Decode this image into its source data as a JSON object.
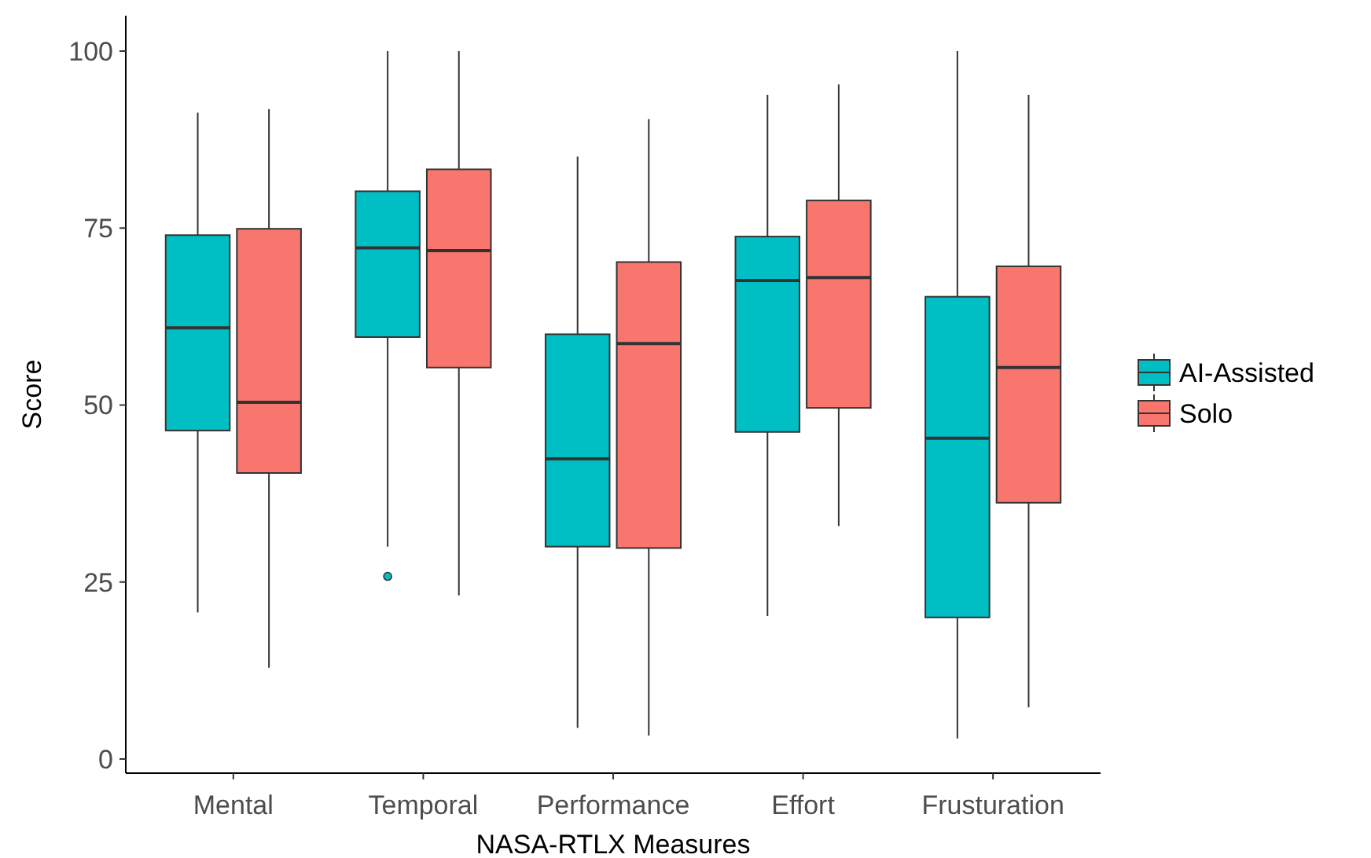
{
  "chart_data": {
    "type": "box",
    "xlabel": "NASA-RTLX Measures",
    "ylabel": "Score",
    "categories": [
      "Mental",
      "Temporal",
      "Performance",
      "Effort",
      "Frusturation"
    ],
    "ylim": [
      -2,
      105
    ],
    "yticks": [
      0,
      25,
      50,
      75,
      100
    ],
    "grid": false,
    "legend": "right",
    "series": [
      {
        "name": "AI-Assisted",
        "color": "#00bfc4",
        "boxes": [
          {
            "low": 20.7,
            "q1": 46.4,
            "median": 60.9,
            "q3": 74,
            "high": 91.3
          },
          {
            "low": 30,
            "q1": 59.6,
            "median": 72.2,
            "q3": 80.2,
            "high": 100,
            "outliers": [
              25.8
            ]
          },
          {
            "low": 4.4,
            "q1": 30,
            "median": 42.4,
            "q3": 60,
            "high": 85.1
          },
          {
            "low": 20.2,
            "q1": 46.2,
            "median": 67.6,
            "q3": 73.8,
            "high": 93.8
          },
          {
            "low": 2.9,
            "q1": 20,
            "median": 45.3,
            "q3": 65.3,
            "high": 100
          }
        ]
      },
      {
        "name": "Solo",
        "color": "#f8766d",
        "boxes": [
          {
            "low": 12.9,
            "q1": 40.4,
            "median": 50.4,
            "q3": 74.9,
            "high": 91.8
          },
          {
            "low": 23.1,
            "q1": 55.3,
            "median": 71.8,
            "q3": 83.3,
            "high": 100
          },
          {
            "low": 3.3,
            "q1": 29.8,
            "median": 58.7,
            "q3": 70.2,
            "high": 90.4
          },
          {
            "low": 32.9,
            "q1": 49.6,
            "median": 68,
            "q3": 78.9,
            "high": 95.3
          },
          {
            "low": 7.3,
            "q1": 36.2,
            "median": 55.3,
            "q3": 69.6,
            "high": 93.8
          }
        ]
      }
    ]
  }
}
